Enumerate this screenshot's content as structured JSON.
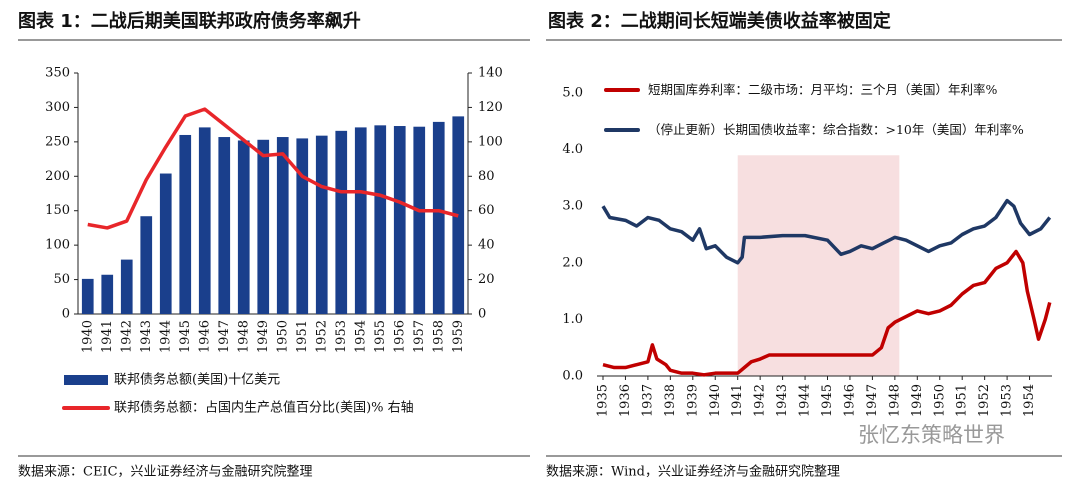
{
  "chart_data": [
    {
      "type": "bar",
      "title": "图表 1：二战后期美国联邦政府债务率飙升",
      "categories": [
        "1940",
        "1941",
        "1942",
        "1943",
        "1944",
        "1945",
        "1946",
        "1947",
        "1948",
        "1949",
        "1950",
        "1951",
        "1952",
        "1953",
        "1954",
        "1955",
        "1956",
        "1957",
        "1958",
        "1959"
      ],
      "series": [
        {
          "name": "联邦债务总额(美国)十亿美元",
          "type": "bar",
          "color": "#1a3f8c",
          "values": [
            51,
            57,
            79,
            142,
            204,
            260,
            271,
            257,
            252,
            253,
            257,
            255,
            259,
            266,
            271,
            274,
            273,
            272,
            279,
            287
          ]
        },
        {
          "name": "联邦债务总额：占国内生产总值百分比(美国)% 右轴",
          "type": "line",
          "axis": "y2",
          "color": "#e8262a",
          "values": [
            52,
            50,
            54,
            78,
            97,
            115,
            119,
            110,
            101,
            92,
            93,
            80,
            74,
            71,
            71,
            69,
            65,
            60,
            60,
            57
          ]
        }
      ],
      "ylim": [
        0,
        350
      ],
      "yticks": [
        0,
        50,
        100,
        150,
        200,
        250,
        300,
        350
      ],
      "y2lim": [
        0,
        140
      ],
      "y2ticks": [
        0,
        20,
        40,
        60,
        80,
        100,
        120,
        140
      ],
      "source": "数据来源：CEIC，兴业证券经济与金融研究院整理"
    },
    {
      "type": "line",
      "title": "图表 2：二战期间长短端美债收益率被固定",
      "series": [
        {
          "name": "短期国库券利率：二级市场：月平均：三个月（美国）年利率%",
          "color": "#c00000",
          "x": [
            1935,
            1935.5,
            1936,
            1936.5,
            1937,
            1937.2,
            1937.4,
            1937.8,
            1938,
            1938.5,
            1939,
            1939.5,
            1940,
            1940.5,
            1941,
            1941.3,
            1941.6,
            1942,
            1942.4,
            1943,
            1944,
            1945,
            1946,
            1947,
            1947.4,
            1947.7,
            1948,
            1948.5,
            1949,
            1949.5,
            1950,
            1950.5,
            1951,
            1951.5,
            1952,
            1952.5,
            1953,
            1953.4,
            1953.7,
            1953.9,
            1954.2,
            1954.4,
            1954.7,
            1954.9
          ],
          "values": [
            0.2,
            0.15,
            0.15,
            0.2,
            0.25,
            0.55,
            0.3,
            0.2,
            0.1,
            0.05,
            0.05,
            0.02,
            0.05,
            0.05,
            0.05,
            0.15,
            0.25,
            0.3,
            0.37,
            0.37,
            0.37,
            0.37,
            0.37,
            0.37,
            0.5,
            0.85,
            0.95,
            1.05,
            1.15,
            1.1,
            1.15,
            1.25,
            1.45,
            1.6,
            1.65,
            1.9,
            2.0,
            2.2,
            2.0,
            1.5,
            1.0,
            0.65,
            1.0,
            1.3
          ]
        },
        {
          "name": "（停止更新）长期国债收益率：综合指数：>10年（美国）年利率%",
          "color": "#1f3864",
          "x": [
            1935,
            1935.3,
            1936,
            1936.5,
            1937,
            1937.5,
            1938,
            1938.5,
            1939,
            1939.3,
            1939.6,
            1940,
            1940.5,
            1941,
            1941.2,
            1941.3,
            1942,
            1943,
            1944,
            1945,
            1945.6,
            1946,
            1946.5,
            1947,
            1947.5,
            1948,
            1948.5,
            1949,
            1949.5,
            1950,
            1950.5,
            1951,
            1951.5,
            1952,
            1952.5,
            1953,
            1953.3,
            1953.6,
            1954,
            1954.5,
            1954.9
          ],
          "values": [
            3.0,
            2.8,
            2.75,
            2.65,
            2.8,
            2.75,
            2.6,
            2.55,
            2.4,
            2.6,
            2.25,
            2.3,
            2.1,
            2.0,
            2.1,
            2.45,
            2.45,
            2.48,
            2.48,
            2.4,
            2.15,
            2.2,
            2.3,
            2.25,
            2.35,
            2.45,
            2.4,
            2.3,
            2.2,
            2.3,
            2.35,
            2.5,
            2.6,
            2.65,
            2.8,
            3.1,
            3.0,
            2.7,
            2.5,
            2.6,
            2.8
          ]
        }
      ],
      "shaded_range": [
        1941,
        1948.2
      ],
      "xlim": [
        1935,
        1955
      ],
      "xticks": [
        1935,
        1936,
        1937,
        1938,
        1939,
        1940,
        1941,
        1942,
        1943,
        1944,
        1945,
        1946,
        1947,
        1948,
        1949,
        1950,
        1951,
        1952,
        1953,
        1954
      ],
      "ylim": [
        0,
        5
      ],
      "yticks": [
        {
          "value": 0,
          "label": "0.0"
        },
        {
          "value": 1,
          "label": "1.0"
        },
        {
          "value": 2,
          "label": "2.0"
        },
        {
          "value": 3,
          "label": "3.0"
        },
        {
          "value": 4,
          "label": "4.0"
        },
        {
          "value": 5,
          "label": "5.0"
        }
      ],
      "source": "数据来源：Wind，兴业证券经济与金融研究院整理"
    }
  ],
  "watermark": "张忆东策略世界"
}
